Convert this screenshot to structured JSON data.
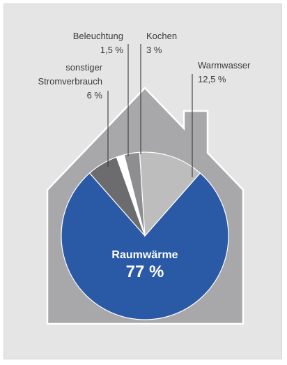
{
  "chart_data": {
    "type": "pie",
    "unit": "%",
    "slices": [
      {
        "label": "Raumwärme",
        "value": 77,
        "value_text": "77 %",
        "color": "#2a59a6"
      },
      {
        "label": "sonstiger Stromverbrauch",
        "label_lines": [
          "sonstiger",
          "Stromverbrauch"
        ],
        "value": 6,
        "value_text": "6 %",
        "color": "#6c6c6e"
      },
      {
        "label": "Beleuchtung",
        "label_lines": [
          "Beleuchtung"
        ],
        "value": 1.5,
        "value_text": "1,5 %",
        "color": "#ffffff"
      },
      {
        "label": "Kochen",
        "label_lines": [
          "Kochen"
        ],
        "value": 3,
        "value_text": "3 %",
        "color": "#8e8e90"
      },
      {
        "label": "Warmwasser",
        "label_lines": [
          "Warmwasser"
        ],
        "value": 12.5,
        "value_text": "12,5 %",
        "color": "#bdbdbe"
      }
    ]
  },
  "colors": {
    "background": "#e5e5e6",
    "house": "#a8a8aa",
    "house_stroke": "#ffffff",
    "leader": "#3a3a3a"
  }
}
